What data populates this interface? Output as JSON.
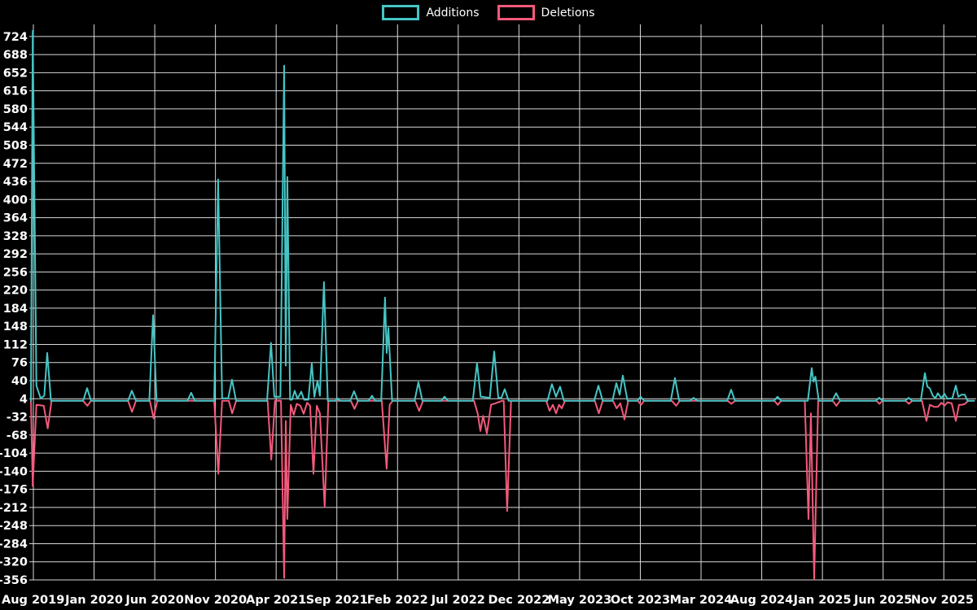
{
  "page": {
    "background": "#000000",
    "text_color": "#ffffff",
    "grid_color": "#d9d9d9"
  },
  "chart_data": {
    "type": "line",
    "title": "",
    "xlabel": "",
    "ylabel": "",
    "grid": true,
    "legend_position": "top-center",
    "x_axis": {
      "unit": "months since Aug 2019",
      "range": [
        -0.2,
        77.6
      ],
      "ticks": [
        {
          "m": 0,
          "label": "Aug 2019"
        },
        {
          "m": 5,
          "label": "Jan 2020"
        },
        {
          "m": 10,
          "label": "Jun 2020"
        },
        {
          "m": 15,
          "label": "Nov 2020"
        },
        {
          "m": 20,
          "label": "Apr 2021"
        },
        {
          "m": 25,
          "label": "Sep 2021"
        },
        {
          "m": 30,
          "label": "Feb 2022"
        },
        {
          "m": 35,
          "label": "Jul 2022"
        },
        {
          "m": 40,
          "label": "Dec 2022"
        },
        {
          "m": 45,
          "label": "May 2023"
        },
        {
          "m": 50,
          "label": "Oct 2023"
        },
        {
          "m": 55,
          "label": "Mar 2024"
        },
        {
          "m": 60,
          "label": "Aug 2024"
        },
        {
          "m": 65,
          "label": "Jan 2025"
        },
        {
          "m": 70,
          "label": "Jun 2025"
        },
        {
          "m": 75,
          "label": "Nov 2025"
        }
      ]
    },
    "y_axis": {
      "range": [
        -377,
        748
      ],
      "ticks": [
        724,
        688,
        652,
        616,
        580,
        544,
        508,
        472,
        436,
        400,
        364,
        328,
        292,
        256,
        220,
        184,
        148,
        112,
        76,
        40,
        4,
        -32,
        -68,
        -104,
        -140,
        -176,
        -212,
        -248,
        -284,
        -320,
        -356
      ]
    },
    "series": [
      {
        "name": "Additions",
        "color": "#45c5c5",
        "points": [
          [
            -0.2,
            0
          ],
          [
            -0.05,
            735
          ],
          [
            0.25,
            30
          ],
          [
            0.6,
            5
          ],
          [
            0.9,
            10
          ],
          [
            1.14,
            95
          ],
          [
            1.45,
            0
          ],
          [
            4.1,
            0
          ],
          [
            4.43,
            25
          ],
          [
            4.75,
            0
          ],
          [
            7.8,
            0
          ],
          [
            8.11,
            20
          ],
          [
            8.45,
            0
          ],
          [
            9.55,
            0
          ],
          [
            9.86,
            170
          ],
          [
            10.15,
            0
          ],
          [
            12.7,
            0
          ],
          [
            13.0,
            16
          ],
          [
            13.3,
            0
          ],
          [
            14.9,
            0
          ],
          [
            15.22,
            440
          ],
          [
            15.55,
            5
          ],
          [
            16.05,
            5
          ],
          [
            16.36,
            42
          ],
          [
            16.7,
            0
          ],
          [
            19.25,
            0
          ],
          [
            19.58,
            115
          ],
          [
            19.85,
            8
          ],
          [
            20.35,
            8
          ],
          [
            20.66,
            666
          ],
          [
            20.79,
            70
          ],
          [
            20.92,
            445
          ],
          [
            21.15,
            2
          ],
          [
            21.3,
            2
          ],
          [
            21.53,
            20
          ],
          [
            21.75,
            4
          ],
          [
            22.07,
            18
          ],
          [
            22.3,
            2
          ],
          [
            22.65,
            2
          ],
          [
            22.94,
            75
          ],
          [
            23.15,
            8
          ],
          [
            23.41,
            40
          ],
          [
            23.6,
            10
          ],
          [
            23.94,
            236
          ],
          [
            24.25,
            0
          ],
          [
            24.9,
            0
          ],
          [
            25.05,
            5
          ],
          [
            25.25,
            0
          ],
          [
            26.1,
            0
          ],
          [
            26.42,
            19
          ],
          [
            26.72,
            0
          ],
          [
            27.6,
            0
          ],
          [
            27.9,
            10
          ],
          [
            28.15,
            0
          ],
          [
            28.65,
            0
          ],
          [
            28.97,
            205
          ],
          [
            29.1,
            95
          ],
          [
            29.24,
            145
          ],
          [
            29.55,
            0
          ],
          [
            31.4,
            0
          ],
          [
            31.72,
            37
          ],
          [
            32.05,
            0
          ],
          [
            33.6,
            0
          ],
          [
            33.87,
            8
          ],
          [
            34.15,
            0
          ],
          [
            36.2,
            0
          ],
          [
            36.55,
            75
          ],
          [
            36.85,
            8
          ],
          [
            37.6,
            6
          ],
          [
            37.96,
            98
          ],
          [
            38.3,
            6
          ],
          [
            38.55,
            6
          ],
          [
            38.83,
            23
          ],
          [
            39.15,
            0
          ],
          [
            42.35,
            0
          ],
          [
            42.72,
            33
          ],
          [
            43.05,
            8
          ],
          [
            43.39,
            28
          ],
          [
            43.7,
            0
          ],
          [
            46.2,
            0
          ],
          [
            46.55,
            30
          ],
          [
            46.9,
            0
          ],
          [
            47.7,
            0
          ],
          [
            48.02,
            35
          ],
          [
            48.3,
            12
          ],
          [
            48.56,
            50
          ],
          [
            48.95,
            0
          ],
          [
            49.75,
            0
          ],
          [
            50.03,
            8
          ],
          [
            50.3,
            0
          ],
          [
            52.5,
            0
          ],
          [
            52.85,
            45
          ],
          [
            53.2,
            0
          ],
          [
            54.1,
            0
          ],
          [
            54.39,
            6
          ],
          [
            54.7,
            0
          ],
          [
            57.15,
            0
          ],
          [
            57.48,
            22
          ],
          [
            57.8,
            0
          ],
          [
            61.0,
            0
          ],
          [
            61.3,
            8
          ],
          [
            61.6,
            0
          ],
          [
            63.8,
            0
          ],
          [
            64.12,
            65
          ],
          [
            64.27,
            38
          ],
          [
            64.42,
            48
          ],
          [
            64.7,
            0
          ],
          [
            65.8,
            0
          ],
          [
            66.13,
            15
          ],
          [
            66.45,
            0
          ],
          [
            69.4,
            0
          ],
          [
            69.68,
            6
          ],
          [
            69.95,
            0
          ],
          [
            71.8,
            0
          ],
          [
            72.1,
            6
          ],
          [
            72.4,
            0
          ],
          [
            73.1,
            0
          ],
          [
            73.44,
            55
          ],
          [
            73.64,
            28
          ],
          [
            73.84,
            25
          ],
          [
            74.1,
            10
          ],
          [
            74.3,
            5
          ],
          [
            74.51,
            15
          ],
          [
            74.8,
            5
          ],
          [
            75.05,
            14
          ],
          [
            75.3,
            4
          ],
          [
            75.7,
            5
          ],
          [
            75.99,
            30
          ],
          [
            76.2,
            8
          ],
          [
            76.45,
            12
          ],
          [
            76.73,
            12
          ],
          [
            76.95,
            0
          ],
          [
            77.5,
            0
          ]
        ]
      },
      {
        "name": "Deletions",
        "color": "#f4597b",
        "points": [
          [
            -0.2,
            0
          ],
          [
            -0.05,
            -170
          ],
          [
            0.25,
            -8
          ],
          [
            0.85,
            -10
          ],
          [
            1.18,
            -55
          ],
          [
            1.5,
            0
          ],
          [
            4.1,
            0
          ],
          [
            4.45,
            -10
          ],
          [
            4.75,
            0
          ],
          [
            7.8,
            0
          ],
          [
            8.12,
            -22
          ],
          [
            8.45,
            0
          ],
          [
            9.6,
            0
          ],
          [
            9.9,
            -35
          ],
          [
            10.2,
            0
          ],
          [
            14.9,
            0
          ],
          [
            15.24,
            -145
          ],
          [
            15.55,
            0
          ],
          [
            16.1,
            0
          ],
          [
            16.38,
            -25
          ],
          [
            16.7,
            0
          ],
          [
            19.3,
            0
          ],
          [
            19.6,
            -117
          ],
          [
            19.9,
            0
          ],
          [
            20.4,
            0
          ],
          [
            20.66,
            -352
          ],
          [
            20.79,
            -40
          ],
          [
            20.92,
            -235
          ],
          [
            21.2,
            -8
          ],
          [
            21.45,
            -28
          ],
          [
            21.7,
            -6
          ],
          [
            22.0,
            -10
          ],
          [
            22.27,
            -26
          ],
          [
            22.55,
            -4
          ],
          [
            22.8,
            -10
          ],
          [
            23.07,
            -145
          ],
          [
            23.35,
            -10
          ],
          [
            23.6,
            -25
          ],
          [
            24.0,
            -211
          ],
          [
            24.3,
            0
          ],
          [
            26.15,
            0
          ],
          [
            26.45,
            -16
          ],
          [
            26.75,
            0
          ],
          [
            28.7,
            0
          ],
          [
            29.1,
            -135
          ],
          [
            29.35,
            -8
          ],
          [
            29.6,
            0
          ],
          [
            31.45,
            0
          ],
          [
            31.78,
            -20
          ],
          [
            32.1,
            0
          ],
          [
            36.3,
            0
          ],
          [
            36.6,
            -25
          ],
          [
            36.82,
            -60
          ],
          [
            37.05,
            -30
          ],
          [
            37.36,
            -65
          ],
          [
            37.7,
            -8
          ],
          [
            38.2,
            -4
          ],
          [
            38.6,
            0
          ],
          [
            38.75,
            0
          ],
          [
            39.03,
            -219
          ],
          [
            39.35,
            0
          ],
          [
            42.25,
            0
          ],
          [
            42.52,
            -20
          ],
          [
            42.8,
            -8
          ],
          [
            43.06,
            -25
          ],
          [
            43.3,
            -8
          ],
          [
            43.53,
            -15
          ],
          [
            43.8,
            0
          ],
          [
            46.25,
            0
          ],
          [
            46.58,
            -25
          ],
          [
            46.9,
            0
          ],
          [
            47.75,
            0
          ],
          [
            48.05,
            -15
          ],
          [
            48.35,
            -5
          ],
          [
            48.69,
            -37
          ],
          [
            49.0,
            0
          ],
          [
            49.8,
            0
          ],
          [
            50.06,
            -8
          ],
          [
            50.3,
            0
          ],
          [
            52.6,
            0
          ],
          [
            52.95,
            -10
          ],
          [
            53.25,
            0
          ],
          [
            57.2,
            0
          ],
          [
            57.5,
            -6
          ],
          [
            57.8,
            0
          ],
          [
            61.05,
            0
          ],
          [
            61.32,
            -8
          ],
          [
            61.6,
            0
          ],
          [
            63.55,
            0
          ],
          [
            63.85,
            -235
          ],
          [
            64.05,
            -25
          ],
          [
            64.32,
            -355
          ],
          [
            64.65,
            0
          ],
          [
            65.85,
            0
          ],
          [
            66.15,
            -10
          ],
          [
            66.45,
            0
          ],
          [
            69.45,
            0
          ],
          [
            69.7,
            -6
          ],
          [
            69.95,
            0
          ],
          [
            71.85,
            0
          ],
          [
            72.12,
            -6
          ],
          [
            72.4,
            0
          ],
          [
            73.2,
            0
          ],
          [
            73.57,
            -40
          ],
          [
            73.85,
            -8
          ],
          [
            74.2,
            -12
          ],
          [
            74.51,
            -12
          ],
          [
            74.8,
            -4
          ],
          [
            75.05,
            -10
          ],
          [
            75.3,
            -3
          ],
          [
            75.65,
            -5
          ],
          [
            75.99,
            -40
          ],
          [
            76.25,
            -8
          ],
          [
            76.5,
            -8
          ],
          [
            76.75,
            -6
          ],
          [
            77.0,
            0
          ],
          [
            77.5,
            0
          ]
        ]
      }
    ]
  }
}
